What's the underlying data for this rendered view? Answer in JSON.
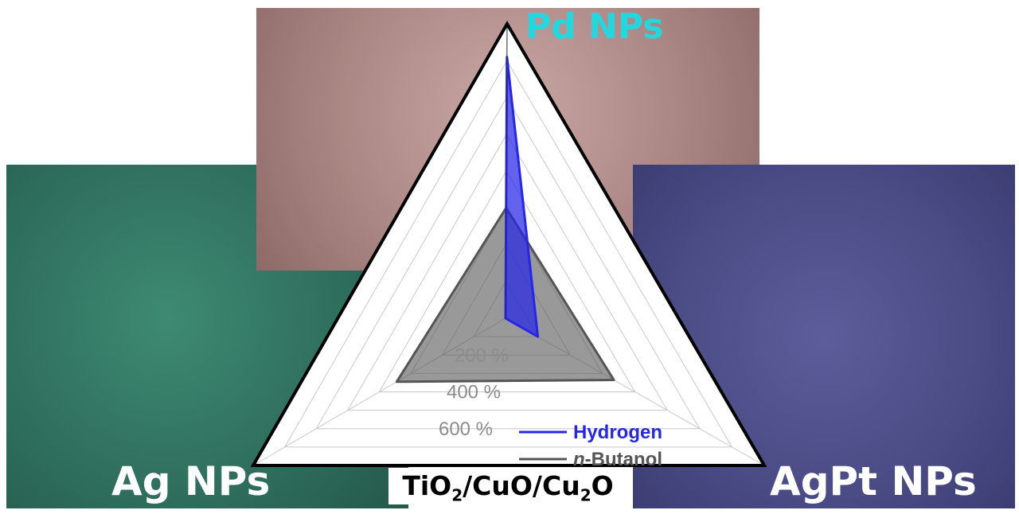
{
  "panels": {
    "left": {
      "label": "Ag NPs",
      "color": "#2f6f5d"
    },
    "top": {
      "label": "Pd NPs",
      "color": "#a98582",
      "label_color": "#22d8de"
    },
    "right": {
      "label": "AgPt NPs",
      "color": "#4b4c86"
    }
  },
  "chart_data": {
    "type": "radar",
    "axes": [
      "Pd NPs",
      "Ag NPs",
      "AgPt NPs"
    ],
    "axis_max": 800,
    "grid_step": 100,
    "tick_labels": [
      {
        "value": 200,
        "label": "200 %"
      },
      {
        "value": 400,
        "label": "400 %"
      },
      {
        "value": 600,
        "label": "600 %"
      }
    ],
    "xlabel_parts": [
      "TiO",
      "2",
      "/CuO/Cu",
      "2",
      "O"
    ],
    "series": [
      {
        "name": "Hydrogen",
        "color": "#2626e6",
        "values": [
          710,
          0,
          100
        ]
      },
      {
        "name": "n-Butanol",
        "color": "#555555",
        "values": [
          300,
          345,
          335
        ]
      }
    ],
    "legend": [
      {
        "label": "Hydrogen",
        "color": "#2626e6"
      },
      {
        "italic": "n",
        "label": "-Butanol",
        "color": "#555555"
      }
    ],
    "legend_position": "bottom-right"
  }
}
